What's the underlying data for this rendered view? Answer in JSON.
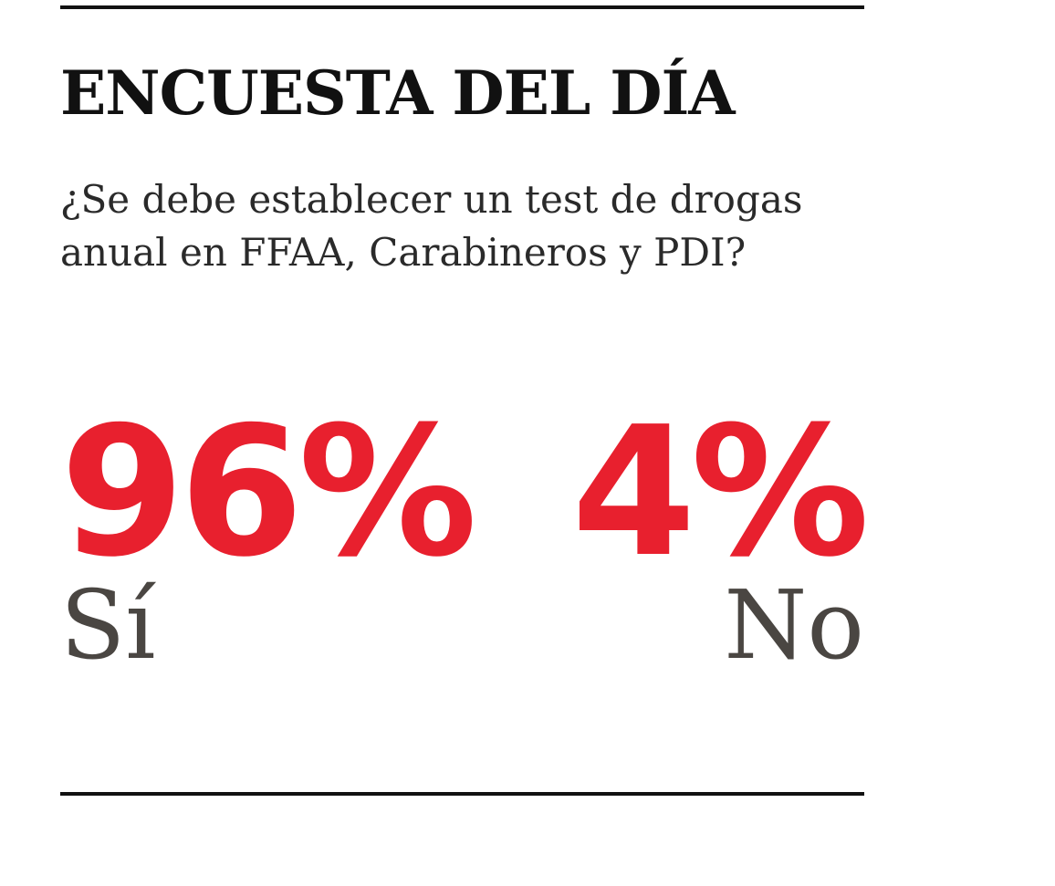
{
  "poll": {
    "title": "ENCUESTA DEL DÍA",
    "question_lines": [
      "¿Se debe establecer un test de drogas",
      "anual en FFAA, Carabineros y PDI?"
    ],
    "results": [
      {
        "percent": "96%",
        "label": "Sí",
        "value": 96
      },
      {
        "percent": "4%",
        "label": "No",
        "value": 4
      }
    ]
  },
  "colors": {
    "accent": "#e8202e",
    "text": "#111111",
    "answer": "#4a4642"
  }
}
